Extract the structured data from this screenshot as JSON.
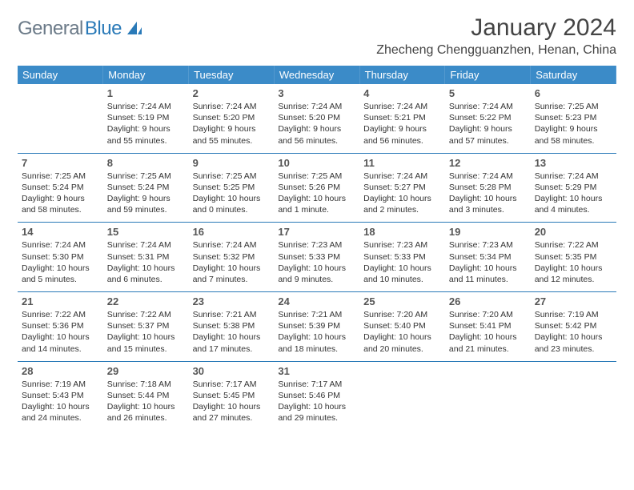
{
  "logo": {
    "general": "General",
    "blue": "Blue"
  },
  "title": "January 2024",
  "location": "Zhecheng Chengguanzhen, Henan, China",
  "headers": [
    "Sunday",
    "Monday",
    "Tuesday",
    "Wednesday",
    "Thursday",
    "Friday",
    "Saturday"
  ],
  "colors": {
    "header_bg": "#3b8bc8",
    "header_text": "#ffffff",
    "rule": "#2a7ab8",
    "logo_gray": "#6b7a88",
    "logo_blue": "#2a7ab8"
  },
  "weeks": [
    [
      {
        "n": "",
        "t": ""
      },
      {
        "n": "1",
        "t": "Sunrise: 7:24 AM\nSunset: 5:19 PM\nDaylight: 9 hours and 55 minutes."
      },
      {
        "n": "2",
        "t": "Sunrise: 7:24 AM\nSunset: 5:20 PM\nDaylight: 9 hours and 55 minutes."
      },
      {
        "n": "3",
        "t": "Sunrise: 7:24 AM\nSunset: 5:20 PM\nDaylight: 9 hours and 56 minutes."
      },
      {
        "n": "4",
        "t": "Sunrise: 7:24 AM\nSunset: 5:21 PM\nDaylight: 9 hours and 56 minutes."
      },
      {
        "n": "5",
        "t": "Sunrise: 7:24 AM\nSunset: 5:22 PM\nDaylight: 9 hours and 57 minutes."
      },
      {
        "n": "6",
        "t": "Sunrise: 7:25 AM\nSunset: 5:23 PM\nDaylight: 9 hours and 58 minutes."
      }
    ],
    [
      {
        "n": "7",
        "t": "Sunrise: 7:25 AM\nSunset: 5:24 PM\nDaylight: 9 hours and 58 minutes."
      },
      {
        "n": "8",
        "t": "Sunrise: 7:25 AM\nSunset: 5:24 PM\nDaylight: 9 hours and 59 minutes."
      },
      {
        "n": "9",
        "t": "Sunrise: 7:25 AM\nSunset: 5:25 PM\nDaylight: 10 hours and 0 minutes."
      },
      {
        "n": "10",
        "t": "Sunrise: 7:25 AM\nSunset: 5:26 PM\nDaylight: 10 hours and 1 minute."
      },
      {
        "n": "11",
        "t": "Sunrise: 7:24 AM\nSunset: 5:27 PM\nDaylight: 10 hours and 2 minutes."
      },
      {
        "n": "12",
        "t": "Sunrise: 7:24 AM\nSunset: 5:28 PM\nDaylight: 10 hours and 3 minutes."
      },
      {
        "n": "13",
        "t": "Sunrise: 7:24 AM\nSunset: 5:29 PM\nDaylight: 10 hours and 4 minutes."
      }
    ],
    [
      {
        "n": "14",
        "t": "Sunrise: 7:24 AM\nSunset: 5:30 PM\nDaylight: 10 hours and 5 minutes."
      },
      {
        "n": "15",
        "t": "Sunrise: 7:24 AM\nSunset: 5:31 PM\nDaylight: 10 hours and 6 minutes."
      },
      {
        "n": "16",
        "t": "Sunrise: 7:24 AM\nSunset: 5:32 PM\nDaylight: 10 hours and 7 minutes."
      },
      {
        "n": "17",
        "t": "Sunrise: 7:23 AM\nSunset: 5:33 PM\nDaylight: 10 hours and 9 minutes."
      },
      {
        "n": "18",
        "t": "Sunrise: 7:23 AM\nSunset: 5:33 PM\nDaylight: 10 hours and 10 minutes."
      },
      {
        "n": "19",
        "t": "Sunrise: 7:23 AM\nSunset: 5:34 PM\nDaylight: 10 hours and 11 minutes."
      },
      {
        "n": "20",
        "t": "Sunrise: 7:22 AM\nSunset: 5:35 PM\nDaylight: 10 hours and 12 minutes."
      }
    ],
    [
      {
        "n": "21",
        "t": "Sunrise: 7:22 AM\nSunset: 5:36 PM\nDaylight: 10 hours and 14 minutes."
      },
      {
        "n": "22",
        "t": "Sunrise: 7:22 AM\nSunset: 5:37 PM\nDaylight: 10 hours and 15 minutes."
      },
      {
        "n": "23",
        "t": "Sunrise: 7:21 AM\nSunset: 5:38 PM\nDaylight: 10 hours and 17 minutes."
      },
      {
        "n": "24",
        "t": "Sunrise: 7:21 AM\nSunset: 5:39 PM\nDaylight: 10 hours and 18 minutes."
      },
      {
        "n": "25",
        "t": "Sunrise: 7:20 AM\nSunset: 5:40 PM\nDaylight: 10 hours and 20 minutes."
      },
      {
        "n": "26",
        "t": "Sunrise: 7:20 AM\nSunset: 5:41 PM\nDaylight: 10 hours and 21 minutes."
      },
      {
        "n": "27",
        "t": "Sunrise: 7:19 AM\nSunset: 5:42 PM\nDaylight: 10 hours and 23 minutes."
      }
    ],
    [
      {
        "n": "28",
        "t": "Sunrise: 7:19 AM\nSunset: 5:43 PM\nDaylight: 10 hours and 24 minutes."
      },
      {
        "n": "29",
        "t": "Sunrise: 7:18 AM\nSunset: 5:44 PM\nDaylight: 10 hours and 26 minutes."
      },
      {
        "n": "30",
        "t": "Sunrise: 7:17 AM\nSunset: 5:45 PM\nDaylight: 10 hours and 27 minutes."
      },
      {
        "n": "31",
        "t": "Sunrise: 7:17 AM\nSunset: 5:46 PM\nDaylight: 10 hours and 29 minutes."
      },
      {
        "n": "",
        "t": ""
      },
      {
        "n": "",
        "t": ""
      },
      {
        "n": "",
        "t": ""
      }
    ]
  ]
}
